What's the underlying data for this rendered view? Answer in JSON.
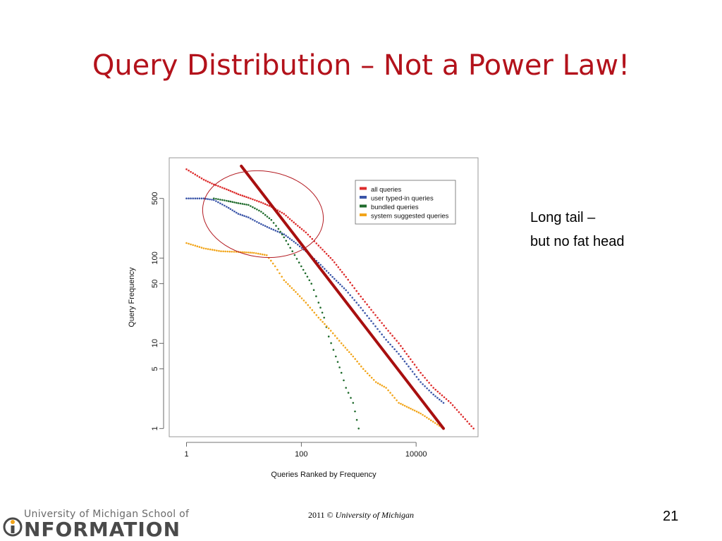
{
  "slide": {
    "title": "Query Distribution – Not a Power Law!",
    "note_line1": "Long tail –",
    "note_line2": "but no fat head",
    "footer_year": "2011 ©",
    "footer_org": "University of Michigan",
    "page_number": "21",
    "logo_top": "University of Michigan School of",
    "logo_bottom": "NFORMATION"
  },
  "colors": {
    "title": "#b3121b",
    "all_queries": "#dd2b2b",
    "user_typed": "#3a55a8",
    "bundled": "#1f6b2c",
    "system_suggested": "#f2a51a",
    "power_law_line": "#a80f0f",
    "ellipse": "#b31b22"
  },
  "chart_data": {
    "type": "scatter",
    "xlabel": "Queries Ranked by Frequency",
    "ylabel": "Query Frequency",
    "x_scale": "log",
    "y_scale": "log",
    "xlim": [
      0.5,
      120000
    ],
    "ylim": [
      0.8,
      1500
    ],
    "x_ticks": [
      {
        "value": 1,
        "label": "1"
      },
      {
        "value": 100,
        "label": "100"
      },
      {
        "value": 10000,
        "label": "10000"
      }
    ],
    "y_ticks": [
      {
        "value": 1,
        "label": "1"
      },
      {
        "value": 5,
        "label": "5"
      },
      {
        "value": 10,
        "label": "10"
      },
      {
        "value": 50,
        "label": "50"
      },
      {
        "value": 100,
        "label": "100"
      },
      {
        "value": 500,
        "label": "500"
      }
    ],
    "legend_position": "top-right",
    "series": [
      {
        "name": "all queries",
        "color": "#dd2b2b",
        "points": [
          [
            1,
            1100
          ],
          [
            2,
            830
          ],
          [
            3,
            730
          ],
          [
            5,
            640
          ],
          [
            8,
            560
          ],
          [
            12,
            510
          ],
          [
            20,
            450
          ],
          [
            30,
            400
          ],
          [
            50,
            330
          ],
          [
            80,
            250
          ],
          [
            120,
            200
          ],
          [
            200,
            140
          ],
          [
            350,
            95
          ],
          [
            600,
            60
          ],
          [
            1000,
            38
          ],
          [
            1800,
            23
          ],
          [
            3000,
            15
          ],
          [
            5000,
            10
          ],
          [
            8000,
            6.5
          ],
          [
            12000,
            4.5
          ],
          [
            20000,
            3
          ],
          [
            40000,
            2
          ],
          [
            100000,
            1
          ]
        ]
      },
      {
        "name": "user typed-in queries",
        "color": "#3a55a8",
        "points": [
          [
            1,
            500
          ],
          [
            2,
            500
          ],
          [
            3,
            480
          ],
          [
            5,
            400
          ],
          [
            8,
            330
          ],
          [
            12,
            300
          ],
          [
            20,
            250
          ],
          [
            30,
            220
          ],
          [
            50,
            190
          ],
          [
            80,
            150
          ],
          [
            120,
            120
          ],
          [
            200,
            88
          ],
          [
            350,
            60
          ],
          [
            600,
            42
          ],
          [
            1000,
            28
          ],
          [
            1800,
            17
          ],
          [
            3000,
            11
          ],
          [
            5000,
            7.5
          ],
          [
            8000,
            5
          ],
          [
            12000,
            3.5
          ],
          [
            20000,
            2.5
          ],
          [
            30000,
            2
          ]
        ]
      },
      {
        "name": "bundled queries",
        "color": "#1f6b2c",
        "points": [
          [
            3,
            500
          ],
          [
            5,
            470
          ],
          [
            8,
            440
          ],
          [
            12,
            420
          ],
          [
            20,
            350
          ],
          [
            30,
            280
          ],
          [
            40,
            220
          ],
          [
            50,
            175
          ],
          [
            70,
            120
          ],
          [
            100,
            80
          ],
          [
            150,
            50
          ],
          [
            200,
            30
          ],
          [
            250,
            20
          ],
          [
            300,
            12
          ],
          [
            400,
            7
          ],
          [
            500,
            4.5
          ],
          [
            600,
            3
          ],
          [
            800,
            2
          ],
          [
            1000,
            1
          ]
        ]
      },
      {
        "name": "system suggested queries",
        "color": "#f2a51a",
        "points": [
          [
            1,
            150
          ],
          [
            2,
            130
          ],
          [
            4,
            120
          ],
          [
            8,
            118
          ],
          [
            15,
            115
          ],
          [
            25,
            108
          ],
          [
            35,
            80
          ],
          [
            50,
            55
          ],
          [
            80,
            40
          ],
          [
            120,
            30
          ],
          [
            200,
            20
          ],
          [
            300,
            15
          ],
          [
            500,
            10
          ],
          [
            800,
            7
          ],
          [
            1200,
            5
          ],
          [
            2000,
            3.5
          ],
          [
            3000,
            3
          ],
          [
            5000,
            2
          ],
          [
            12000,
            1.5
          ],
          [
            30000,
            1
          ]
        ]
      }
    ]
  }
}
